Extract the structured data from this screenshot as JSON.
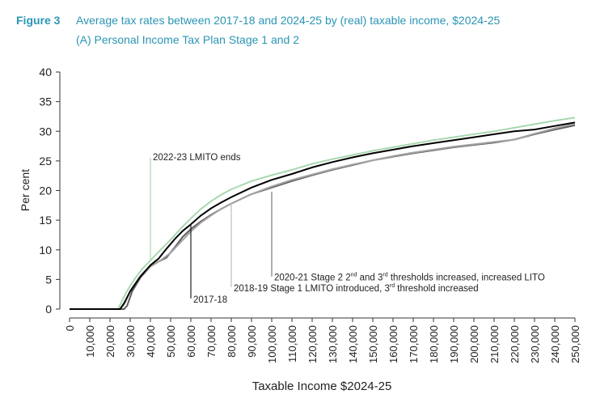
{
  "figure": {
    "label": "Figure 3",
    "title": "Average tax rates between 2017-18 and 2024-25 by (real) taxable income, $2024-25",
    "subtitle": "(A) Personal Income Tax Plan Stage 1 and 2"
  },
  "chart_data": {
    "type": "line",
    "xlabel": "Taxable Income $2024-25",
    "ylabel": "Per cent",
    "xlim": [
      0,
      250000
    ],
    "ylim": [
      0,
      40
    ],
    "grid": false,
    "x_ticks": [
      "0",
      "10,000",
      "20,000",
      "30,000",
      "40,000",
      "50,000",
      "60,000",
      "70,000",
      "80,000",
      "90,000",
      "100,000",
      "110,000",
      "120,000",
      "130,000",
      "140,000",
      "150,000",
      "160,000",
      "170,000",
      "180,000",
      "190,000",
      "200,000",
      "210,000",
      "220,000",
      "230,000",
      "240,000",
      "250,000"
    ],
    "y_ticks": [
      "0",
      "5",
      "10",
      "15",
      "20",
      "25",
      "30",
      "35",
      "40"
    ],
    "series": [
      {
        "key": "2022-23",
        "color": "#a8d8b0",
        "width": 2,
        "x": [
          0,
          24000,
          28000,
          32000,
          36000,
          40000,
          45000,
          50000,
          55000,
          60000,
          65000,
          70000,
          75000,
          80000,
          90000,
          100000,
          110000,
          120000,
          130000,
          140000,
          150000,
          160000,
          170000,
          180000,
          190000,
          200000,
          210000,
          220000,
          230000,
          240000,
          250000
        ],
        "y": [
          0,
          0,
          2.8,
          5.0,
          6.8,
          8.2,
          10.0,
          11.7,
          13.6,
          15.3,
          16.9,
          18.2,
          19.3,
          20.2,
          21.6,
          22.6,
          23.5,
          24.5,
          25.3,
          26.0,
          26.7,
          27.3,
          27.9,
          28.5,
          29.0,
          29.5,
          30.0,
          30.6,
          31.2,
          31.8,
          32.3
        ]
      },
      {
        "key": "2020-21",
        "color": "#000000",
        "width": 2,
        "x": [
          0,
          25000,
          27000,
          30000,
          35000,
          40000,
          44000,
          48000,
          52000,
          56000,
          60000,
          65000,
          70000,
          75000,
          80000,
          90000,
          100000,
          110000,
          120000,
          130000,
          140000,
          150000,
          160000,
          170000,
          180000,
          190000,
          200000,
          210000,
          220000,
          230000,
          240000,
          250000
        ],
        "y": [
          0,
          0,
          1.0,
          3.0,
          5.5,
          7.4,
          8.5,
          10.2,
          11.8,
          13.2,
          14.3,
          15.8,
          17.0,
          18.0,
          18.9,
          20.5,
          21.8,
          22.8,
          23.9,
          24.8,
          25.6,
          26.3,
          26.9,
          27.5,
          28.0,
          28.5,
          29.0,
          29.5,
          30.0,
          30.3,
          30.9,
          31.5
        ]
      },
      {
        "key": "2018-19",
        "color": "#a3a3a3",
        "width": 2,
        "x": [
          0,
          25000,
          27000,
          30000,
          35000,
          40000,
          45000,
          50000,
          55000,
          60000,
          65000,
          70000,
          75000,
          80000,
          90000,
          100000,
          110000,
          120000,
          130000,
          140000,
          150000,
          160000,
          170000,
          180000,
          190000,
          200000,
          210000,
          220000,
          230000,
          240000,
          250000
        ],
        "y": [
          0,
          0,
          0.8,
          3.0,
          5.5,
          7.2,
          8.2,
          9.5,
          11.3,
          13.1,
          14.6,
          15.8,
          16.9,
          17.8,
          19.4,
          20.7,
          21.8,
          22.7,
          23.6,
          24.4,
          25.1,
          25.8,
          26.4,
          26.9,
          27.4,
          27.8,
          28.2,
          28.6,
          29.6,
          30.5,
          31.3
        ]
      },
      {
        "key": "2017-18",
        "color": "#5f5f5f",
        "width": 2,
        "x": [
          0,
          27000,
          28500,
          31000,
          35000,
          40000,
          44000,
          48000,
          52000,
          56000,
          60000,
          65000,
          70000,
          75000,
          80000,
          90000,
          100000,
          110000,
          120000,
          130000,
          140000,
          150000,
          160000,
          170000,
          180000,
          190000,
          200000,
          210000,
          220000,
          230000,
          240000,
          250000
        ],
        "y": [
          0,
          0,
          0.6,
          3.0,
          5.3,
          7.2,
          8.0,
          8.7,
          10.4,
          12.2,
          13.5,
          14.8,
          15.9,
          16.9,
          17.8,
          19.4,
          20.5,
          21.6,
          22.6,
          23.5,
          24.3,
          25.1,
          25.7,
          26.3,
          26.8,
          27.3,
          27.7,
          28.1,
          28.6,
          29.5,
          30.3,
          31.0
        ]
      }
    ],
    "annotations": [
      {
        "key": "lmito-ends",
        "text": "2022-23 LMITO ends",
        "color": "#a8d8b0",
        "x": 40000,
        "y_from": 8.2,
        "y_to": 25.5,
        "label_anchor": "top"
      },
      {
        "key": "stage2",
        "text_parts": [
          "2020-21 Stage 2 2",
          "nd",
          " and 3",
          "rd",
          " thresholds increased, increased LITO"
        ],
        "color": "#777777",
        "x": 100000,
        "y_from": 19.8,
        "y_to": 5.5,
        "label_anchor": "bottom"
      },
      {
        "key": "stage1",
        "text_parts": [
          "2018-19 Stage 1 LMITO introduced, 3",
          "rd",
          " threshold increased"
        ],
        "color": "#bdbdbd",
        "x": 80000,
        "y_from": 18.0,
        "y_to": 3.7,
        "label_anchor": "bottom"
      },
      {
        "key": "base-year",
        "text": "2017-18",
        "color": "#222222",
        "x": 60000,
        "y_from": 14.3,
        "y_to": 1.8,
        "label_anchor": "bottom"
      }
    ]
  }
}
